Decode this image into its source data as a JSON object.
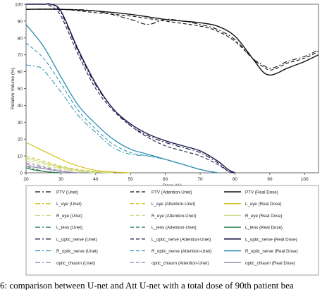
{
  "caption": "6: comparison between U-net and  Att U-net with a total dose of 90th patient bea",
  "chart_data": {
    "type": "line",
    "title": "",
    "xlabel": "Dose (%)",
    "ylabel": "Relative Volume (%)",
    "xlim": [
      20,
      104
    ],
    "ylim": [
      0,
      100
    ],
    "xticks": [
      20,
      30,
      40,
      50,
      60,
      70,
      80,
      90,
      100
    ],
    "yticks": [
      0,
      10,
      20,
      30,
      40,
      50,
      60,
      70,
      80,
      90,
      100
    ],
    "grid": false,
    "legend_position": "bottom",
    "series": [
      {
        "name": "PTV (Unet)",
        "color": "#111111",
        "dash": "dashdot",
        "width": 1.1,
        "x": [
          20,
          30,
          40,
          50,
          55,
          60,
          65,
          70,
          75,
          80,
          85,
          88,
          90,
          92,
          95,
          100,
          104
        ],
        "y": [
          97,
          97,
          96,
          91,
          88,
          91,
          90,
          88,
          85,
          79,
          68,
          64,
          62,
          63,
          66,
          69,
          73
        ]
      },
      {
        "name": "PTV (Attention-Unet)",
        "color": "#111111",
        "dash": "dashed",
        "width": 1.1,
        "x": [
          20,
          30,
          40,
          50,
          60,
          70,
          75,
          80,
          85,
          88,
          90,
          92,
          95,
          100,
          104
        ],
        "y": [
          97,
          97,
          95,
          93,
          90,
          87,
          84,
          78,
          68,
          63,
          61,
          62,
          65,
          68,
          72
        ]
      },
      {
        "name": "PTV (Real Dose)",
        "color": "#111111",
        "dash": "solid",
        "width": 1.4,
        "x": [
          20,
          30,
          40,
          50,
          60,
          65,
          70,
          75,
          80,
          85,
          88,
          90,
          92,
          95,
          100,
          104
        ],
        "y": [
          97,
          97,
          96,
          94,
          91,
          90,
          89,
          87,
          81,
          68,
          60,
          58,
          59,
          62,
          66,
          70
        ]
      },
      {
        "name": "L_eye (Unet)",
        "color": "#d4c015",
        "dash": "dashdot",
        "width": 1,
        "x": [
          20,
          25,
          30,
          35,
          40,
          45
        ],
        "y": [
          9,
          6,
          3,
          1.5,
          0.6,
          0
        ]
      },
      {
        "name": "L_eye (Attention-Unet)",
        "color": "#d4c015",
        "dash": "dashed",
        "width": 1,
        "x": [
          20,
          25,
          30,
          35,
          40,
          45
        ],
        "y": [
          10,
          7,
          4,
          2,
          0.8,
          0
        ]
      },
      {
        "name": "L_eye (Real Dose)",
        "color": "#d4c015",
        "dash": "solid",
        "width": 1.2,
        "x": [
          20,
          25,
          30,
          35,
          40,
          45,
          50
        ],
        "y": [
          18,
          13,
          8,
          4,
          1.5,
          0.5,
          0
        ]
      },
      {
        "name": "R_eye (Unet)",
        "color": "#c9dd8a",
        "dash": "dashdot",
        "width": 1,
        "x": [
          20,
          25,
          30,
          35,
          40
        ],
        "y": [
          7,
          4,
          2,
          0.7,
          0
        ]
      },
      {
        "name": "R_eye (Attention-Unet)",
        "color": "#c9dd8a",
        "dash": "dashed",
        "width": 1,
        "x": [
          20,
          25,
          30,
          35,
          40
        ],
        "y": [
          8,
          5,
          2.5,
          1,
          0
        ]
      },
      {
        "name": "R_eye (Real Dose)",
        "color": "#c9dd8a",
        "dash": "solid",
        "width": 1.2,
        "x": [
          20,
          25,
          30,
          35,
          40,
          45
        ],
        "y": [
          9,
          6,
          3.5,
          1.5,
          0.5,
          0
        ]
      },
      {
        "name": "L_lens (Unet)",
        "color": "#2e7d4f",
        "dash": "dashdot",
        "width": 1,
        "x": [
          20,
          22,
          25,
          28,
          30
        ],
        "y": [
          4,
          2.5,
          1,
          0.3,
          0
        ]
      },
      {
        "name": "L_lens (Attention-Unet)",
        "color": "#2e7d4f",
        "dash": "dashed",
        "width": 1,
        "x": [
          20,
          22,
          25,
          28,
          30
        ],
        "y": [
          3,
          2,
          1,
          0.3,
          0
        ]
      },
      {
        "name": "L_lens (Real Dose)",
        "color": "#2e7d4f",
        "dash": "solid",
        "width": 1.2,
        "x": [
          20,
          22,
          25,
          28,
          30
        ],
        "y": [
          3,
          1.8,
          0.8,
          0.2,
          0
        ]
      },
      {
        "name": "L_optic_nerve (Unet)",
        "color": "#1a1a4a",
        "dash": "dashdot",
        "width": 1.1,
        "x": [
          20,
          25,
          27,
          30,
          35,
          40,
          45,
          50,
          55,
          60,
          65,
          70,
          75,
          78,
          80
        ],
        "y": [
          100,
          100,
          100,
          95,
          72,
          52,
          38,
          28,
          22,
          18,
          15,
          12,
          6,
          1,
          0
        ]
      },
      {
        "name": "L_optic_nerve (Attention-Unet)",
        "color": "#1a1a4a",
        "dash": "dashed",
        "width": 1.1,
        "x": [
          20,
          25,
          27,
          30,
          35,
          40,
          45,
          50,
          55,
          60,
          65,
          70,
          75,
          78,
          80
        ],
        "y": [
          100,
          100,
          99,
          93,
          70,
          50,
          37,
          28,
          21,
          16,
          13,
          10,
          5,
          1,
          0
        ]
      },
      {
        "name": "L_optic_nerve (Real Dose)",
        "color": "#1a1a4a",
        "dash": "solid",
        "width": 1.4,
        "x": [
          20,
          25,
          27,
          30,
          35,
          40,
          45,
          50,
          55,
          60,
          65,
          70,
          75,
          78,
          80
        ],
        "y": [
          100,
          100,
          100,
          96,
          73,
          53,
          38,
          29,
          23,
          19,
          16,
          13,
          7,
          2,
          0
        ]
      },
      {
        "name": "R_optic_nerve (Unet)",
        "color": "#2a8fb0",
        "dash": "dashdot",
        "width": 1,
        "x": [
          20,
          23,
          25,
          30,
          35,
          40,
          45,
          50,
          55,
          60,
          65,
          70,
          75
        ],
        "y": [
          64,
          63,
          61,
          48,
          34,
          24,
          15,
          11,
          10,
          8,
          5,
          2,
          0
        ]
      },
      {
        "name": "R_optic_nerve (Attention-Unet)",
        "color": "#2a8fb0",
        "dash": "dashed",
        "width": 1,
        "x": [
          20,
          25,
          30,
          35,
          40,
          45,
          50,
          55,
          60,
          65,
          70,
          75
        ],
        "y": [
          77,
          68,
          53,
          37,
          26,
          17,
          12,
          10,
          8,
          5,
          2,
          0
        ]
      },
      {
        "name": "R_optic_nerve (Real Dose)",
        "color": "#2a8fb0",
        "dash": "solid",
        "width": 1.3,
        "x": [
          20,
          25,
          30,
          35,
          40,
          45,
          50,
          55,
          60,
          65,
          70,
          75
        ],
        "y": [
          88,
          75,
          57,
          40,
          29,
          20,
          14,
          11,
          8,
          5,
          2,
          0
        ]
      },
      {
        "name": "optic_chiasm (Unet)",
        "color": "#9a8ab8",
        "dash": "dashdot",
        "width": 1,
        "x": [
          20,
          25,
          30,
          35
        ],
        "y": [
          5,
          3,
          1,
          0
        ]
      },
      {
        "name": "optic_chiasm (Attention-Unet)",
        "color": "#9a8ab8",
        "dash": "dashed",
        "width": 1,
        "x": [
          20,
          25,
          30,
          35
        ],
        "y": [
          6,
          3.5,
          1.2,
          0
        ]
      },
      {
        "name": "optic_chiasm (Real Dose)",
        "color": "#9a8ab8",
        "dash": "solid",
        "width": 1.2,
        "x": [
          20,
          25,
          30,
          35
        ],
        "y": [
          4,
          2.5,
          0.8,
          0
        ]
      }
    ],
    "legend": [
      [
        "PTV (Unet)",
        "PTV (Attention-Unet)",
        "PTV (Real Dose)"
      ],
      [
        "L_eye (Unet)",
        "L_eye (Attention-Unet)",
        "L_eye (Real Dose)"
      ],
      [
        "R_eye (Unet)",
        "R_eye (Attention-Unet)",
        "R_eye (Real Dose)"
      ],
      [
        "L_lens (Unet)",
        "L_lens (Attention-Unet)",
        "L_lens (Real Dose)"
      ],
      [
        "L_optic_nerve (Unet)",
        "L_optic_nerve (Attention-Unet)",
        "L_optic_nerve (Real Dose)"
      ],
      [
        "R_optic_nerve (Unet)",
        "R_optic_nerve (Attention-Unet)",
        "R_optic_nerve (Real Dose)"
      ],
      [
        "optic_chiasm (Unet)",
        "optic_chiasm (Attention-Unet)",
        "optic_chiasm (Real Dose)"
      ]
    ]
  }
}
